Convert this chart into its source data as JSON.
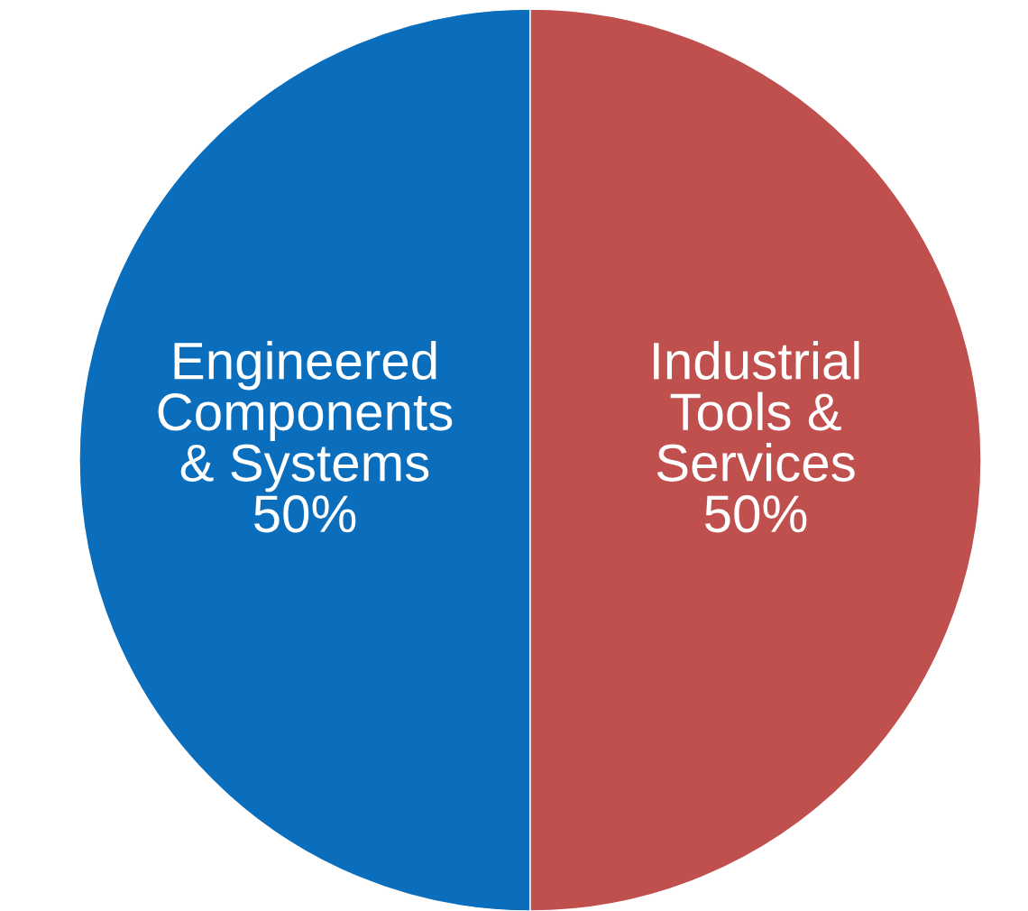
{
  "chart_data": {
    "type": "pie",
    "categories": [
      "Engineered\nComponents\n& Systems",
      "Industrial\nTools &\nServices"
    ],
    "values": [
      50,
      50
    ],
    "colors": [
      "#0a6ebd",
      "#c0504d"
    ],
    "value_labels": [
      "50%",
      "50%"
    ],
    "legend": false
  }
}
